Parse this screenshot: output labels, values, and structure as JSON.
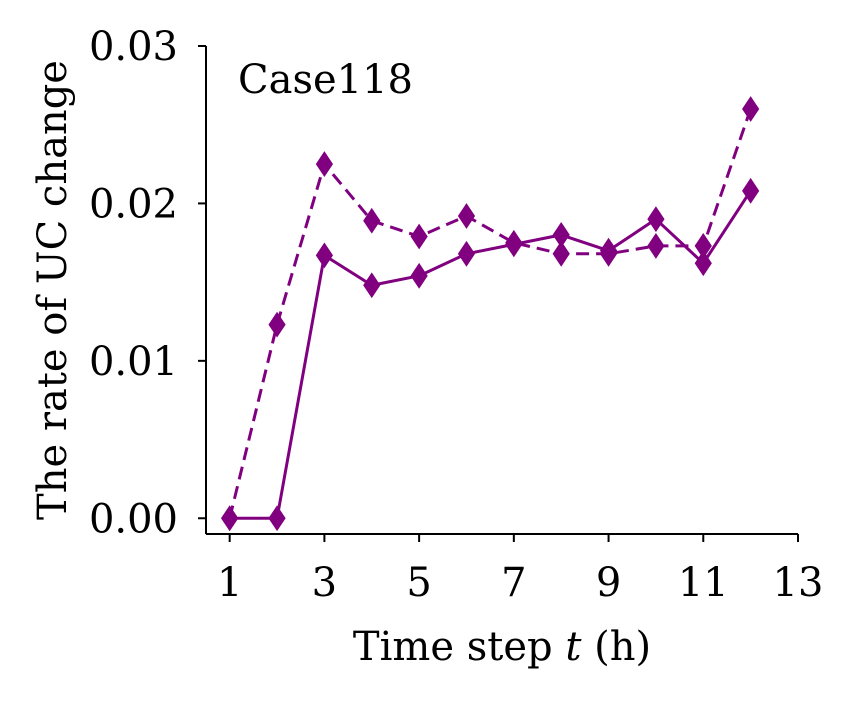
{
  "chart_data": {
    "type": "line",
    "annotation": "Case118",
    "xlabel_prefix": "Time step ",
    "xlabel_var": "t",
    "xlabel_suffix": " (h)",
    "ylabel": "The rate of UC change",
    "x": [
      1,
      2,
      3,
      4,
      5,
      6,
      7,
      8,
      9,
      10,
      11,
      12
    ],
    "xlim": [
      0.5,
      13
    ],
    "ylim": [
      -0.001,
      0.03
    ],
    "xticks": [
      1,
      3,
      5,
      7,
      9,
      11,
      13
    ],
    "xtick_labels": [
      "1",
      "3",
      "5",
      "7",
      "9",
      "11",
      "13"
    ],
    "yticks": [
      0.0,
      0.01,
      0.02,
      0.03
    ],
    "ytick_labels": [
      "0.00",
      "0.01",
      "0.02",
      "0.03"
    ],
    "grid": false,
    "color": "#800080",
    "series": [
      {
        "style": "solid",
        "marker": "diamond",
        "values": [
          0.0,
          0.0,
          0.0167,
          0.0148,
          0.0154,
          0.0168,
          0.0174,
          0.018,
          0.017,
          0.019,
          0.0162,
          0.0208
        ]
      },
      {
        "style": "dashed",
        "marker": "diamond",
        "values": [
          0.0,
          0.0123,
          0.0225,
          0.0189,
          0.0179,
          0.0192,
          0.0175,
          0.0168,
          0.0168,
          0.0173,
          0.0173,
          0.026
        ]
      }
    ]
  }
}
